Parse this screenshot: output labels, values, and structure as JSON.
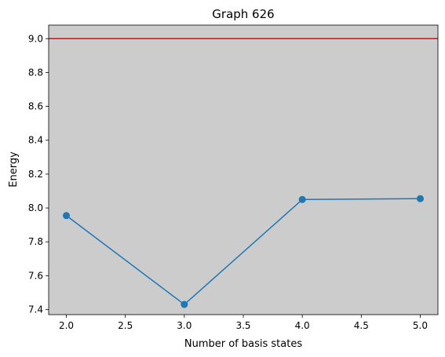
{
  "chart_data": {
    "type": "line",
    "title": "Graph 626",
    "xlabel": "Number of basis states",
    "ylabel": "Energy",
    "x": [
      2.0,
      3.0,
      4.0,
      5.0
    ],
    "series": [
      {
        "values": [
          7.955,
          7.43,
          8.05,
          8.055
        ],
        "color": "#1f77b4",
        "marker": "circle"
      }
    ],
    "reference_line": {
      "y": 9.0,
      "color": "#ff0000"
    },
    "xlim": [
      1.85,
      5.15
    ],
    "ylim": [
      7.37,
      9.08
    ],
    "x_ticks": [
      "2.0",
      "2.5",
      "3.0",
      "3.5",
      "4.0",
      "4.5",
      "5.0"
    ],
    "y_ticks": [
      "7.4",
      "7.6",
      "7.8",
      "8.0",
      "8.2",
      "8.4",
      "8.6",
      "8.8",
      "9.0"
    ],
    "plot_background": "#cccccc",
    "grid": false,
    "legend": "none"
  }
}
